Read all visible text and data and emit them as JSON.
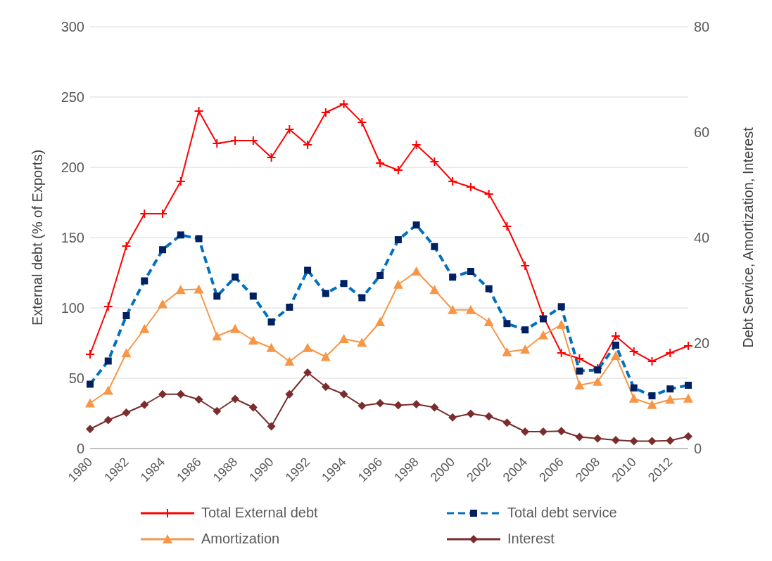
{
  "chart_data": {
    "type": "line",
    "ylabel": "External debt (% of Exports)",
    "y2label": "Debt Service, Amortization, Interest",
    "categories": [
      "1980",
      null,
      "1982",
      null,
      "1984",
      null,
      "1986",
      null,
      "1988",
      null,
      "1990",
      null,
      "1992",
      null,
      "1994",
      null,
      "1996",
      null,
      "1998",
      null,
      "2000",
      null,
      "2002",
      null,
      "2004",
      null,
      "2006",
      null,
      "2008",
      null,
      "2010",
      null,
      "2012",
      null
    ],
    "series": [
      {
        "name": "Total External debt",
        "color": "#ff0000",
        "marker": "cross",
        "line_style": "solid",
        "values": [
          67,
          101,
          144,
          167,
          167,
          190,
          240,
          217,
          219,
          219,
          207,
          227,
          216,
          239,
          245,
          232,
          203,
          198,
          216,
          204,
          190,
          186,
          181,
          158,
          130,
          94,
          68,
          64,
          57,
          80,
          69,
          62,
          68,
          73
        ]
      },
      {
        "name": "Total debt service",
        "color": "#0070c0",
        "marker": "square",
        "line_style": "dashed",
        "axis": "y2",
        "values": [
          12.2,
          16.6,
          25.2,
          31.8,
          37.7,
          40.5,
          39.8,
          28.9,
          32.5,
          28.9,
          24.0,
          26.8,
          33.8,
          29.4,
          31.3,
          28.6,
          32.8,
          39.6,
          42.4,
          38.3,
          32.5,
          33.6,
          30.3,
          23.7,
          22.5,
          24.6,
          26.9,
          14.7,
          14.9,
          19.6,
          11.5,
          10.0,
          11.3,
          12.0
        ]
      },
      {
        "name": "Amortization",
        "color": "#f79646",
        "marker": "triangle",
        "line_style": "solid",
        "axis": "y2",
        "values": [
          8.6,
          11.0,
          18.1,
          22.7,
          27.4,
          30.1,
          30.2,
          21.3,
          22.7,
          20.5,
          19.1,
          16.5,
          19.1,
          17.4,
          20.8,
          20.1,
          24.0,
          31.1,
          33.6,
          30.1,
          26.3,
          26.3,
          24.0,
          18.3,
          18.8,
          21.5,
          23.5,
          12.0,
          12.7,
          17.6,
          9.5,
          8.3,
          9.3,
          9.5
        ]
      },
      {
        "name": "Interest",
        "color": "#7b2c2c",
        "marker": "diamond",
        "line_style": "solid",
        "axis": "y2",
        "values": [
          3.7,
          5.4,
          6.8,
          8.3,
          10.3,
          10.3,
          9.3,
          7.1,
          9.4,
          7.8,
          4.2,
          10.3,
          14.4,
          11.7,
          10.3,
          8.1,
          8.6,
          8.2,
          8.4,
          7.8,
          5.9,
          6.6,
          6.1,
          4.9,
          3.2,
          3.2,
          3.3,
          2.2,
          1.9,
          1.6,
          1.4,
          1.4,
          1.5,
          2.3
        ]
      }
    ],
    "ylim": [
      0,
      300
    ],
    "yticks": [
      0,
      50,
      100,
      150,
      200,
      250,
      300
    ],
    "y2lim": [
      0,
      80
    ],
    "y2ticks": [
      0,
      20,
      40,
      60,
      80
    ],
    "grid": "y",
    "legend": "bottom"
  }
}
